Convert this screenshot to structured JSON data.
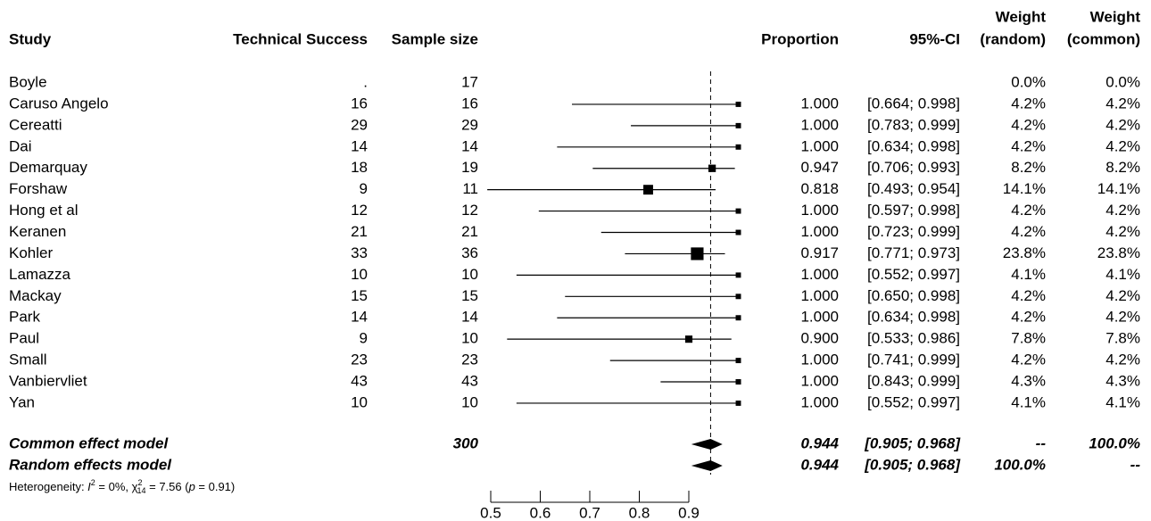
{
  "chart_data": {
    "type": "forest",
    "columns": {
      "study": "Study",
      "events": "Technical Success",
      "n": "Sample size",
      "proportion": "Proportion",
      "ci": "95%-CI",
      "weight_random": [
        "Weight",
        "(random)"
      ],
      "weight_common": [
        "Weight",
        "(common)"
      ]
    },
    "studies": [
      "Boyle",
      "Caruso Angelo",
      "Cereatti",
      "Dai",
      "Demarquay",
      "Forshaw",
      "Hong et al",
      "Keranen",
      "Kohler",
      "Lamazza",
      "Mackay",
      "Park",
      "Paul",
      "Small",
      "Vanbiervliet",
      "Yan"
    ],
    "events": [
      ".",
      16,
      29,
      14,
      18,
      9,
      12,
      21,
      33,
      10,
      15,
      14,
      9,
      23,
      43,
      10
    ],
    "n": [
      17,
      16,
      29,
      14,
      19,
      11,
      12,
      21,
      36,
      10,
      15,
      14,
      10,
      23,
      43,
      10
    ],
    "proportion": {
      "values": [
        null,
        1.0,
        1.0,
        1.0,
        0.947,
        0.818,
        1.0,
        1.0,
        0.917,
        1.0,
        1.0,
        1.0,
        0.9,
        1.0,
        1.0,
        1.0
      ],
      "value_labels": [
        null,
        "1.000",
        "1.000",
        "1.000",
        "0.947",
        "0.818",
        "1.000",
        "1.000",
        "0.917",
        "1.000",
        "1.000",
        "1.000",
        "0.900",
        "1.000",
        "1.000",
        "1.000"
      ]
    },
    "ci_lower": [
      null,
      0.664,
      0.783,
      0.634,
      0.706,
      0.493,
      0.597,
      0.723,
      0.771,
      0.552,
      0.65,
      0.634,
      0.533,
      0.741,
      0.843,
      0.552
    ],
    "ci_upper": [
      null,
      0.998,
      0.999,
      0.998,
      0.993,
      0.954,
      0.998,
      0.999,
      0.973,
      0.997,
      0.998,
      0.998,
      0.986,
      0.999,
      0.999,
      0.997
    ],
    "ci_labels": [
      null,
      "[0.664; 0.998]",
      "[0.783; 0.999]",
      "[0.634; 0.998]",
      "[0.706; 0.993]",
      "[0.493; 0.954]",
      "[0.597; 0.998]",
      "[0.723; 0.999]",
      "[0.771; 0.973]",
      "[0.552; 0.997]",
      "[0.650; 0.998]",
      "[0.634; 0.998]",
      "[0.533; 0.986]",
      "[0.741; 0.999]",
      "[0.843; 0.999]",
      "[0.552; 0.997]"
    ],
    "weight_random": {
      "values": [
        0.0,
        4.2,
        4.2,
        4.2,
        8.2,
        14.1,
        4.2,
        4.2,
        23.8,
        4.1,
        4.2,
        4.2,
        7.8,
        4.2,
        4.3,
        4.1
      ],
      "value_labels": [
        "0.0%",
        "4.2%",
        "4.2%",
        "4.2%",
        "8.2%",
        "14.1%",
        "4.2%",
        "4.2%",
        "23.8%",
        "4.1%",
        "4.2%",
        "4.2%",
        "7.8%",
        "4.2%",
        "4.3%",
        "4.1%"
      ]
    },
    "weight_common": {
      "values": [
        0.0,
        4.2,
        4.2,
        4.2,
        8.2,
        14.1,
        4.2,
        4.2,
        23.8,
        4.1,
        4.2,
        4.2,
        7.8,
        4.2,
        4.3,
        4.1
      ],
      "value_labels": [
        "0.0%",
        "4.2%",
        "4.2%",
        "4.2%",
        "8.2%",
        "14.1%",
        "4.2%",
        "4.2%",
        "23.8%",
        "4.1%",
        "4.2%",
        "4.2%",
        "7.8%",
        "4.2%",
        "4.3%",
        "4.1%"
      ]
    },
    "summary": [
      {
        "name": "Common effect model",
        "n": 300,
        "estimate": 0.944,
        "ci_lower": 0.905,
        "ci_upper": 0.968,
        "ci_label": "[0.905; 0.968]",
        "weight_random": "--",
        "weight_common": {
          "value": 100,
          "label": "100.0%"
        }
      },
      {
        "name": "Random effects model",
        "estimate": 0.944,
        "ci_lower": 0.905,
        "ci_upper": 0.968,
        "ci_label": "[0.905; 0.968]",
        "weight_random": {
          "value": 100,
          "label": "100.0%"
        },
        "weight_common": "--"
      }
    ],
    "heterogeneity": {
      "lead": "Heterogeneity: ",
      "i": "I",
      "i_sup": "2",
      "i_rest": " = 0%, ",
      "chi": "χ",
      "chi_sup": "2",
      "chi_sub": "14",
      "chi_rest": " = 7.56 (",
      "p": "p",
      "p_rest": " = 0.91)"
    },
    "xlim": [
      0.5,
      0.9
    ],
    "xticks": [
      0.5,
      0.6,
      0.7,
      0.8,
      0.9
    ],
    "color": "#000000"
  }
}
